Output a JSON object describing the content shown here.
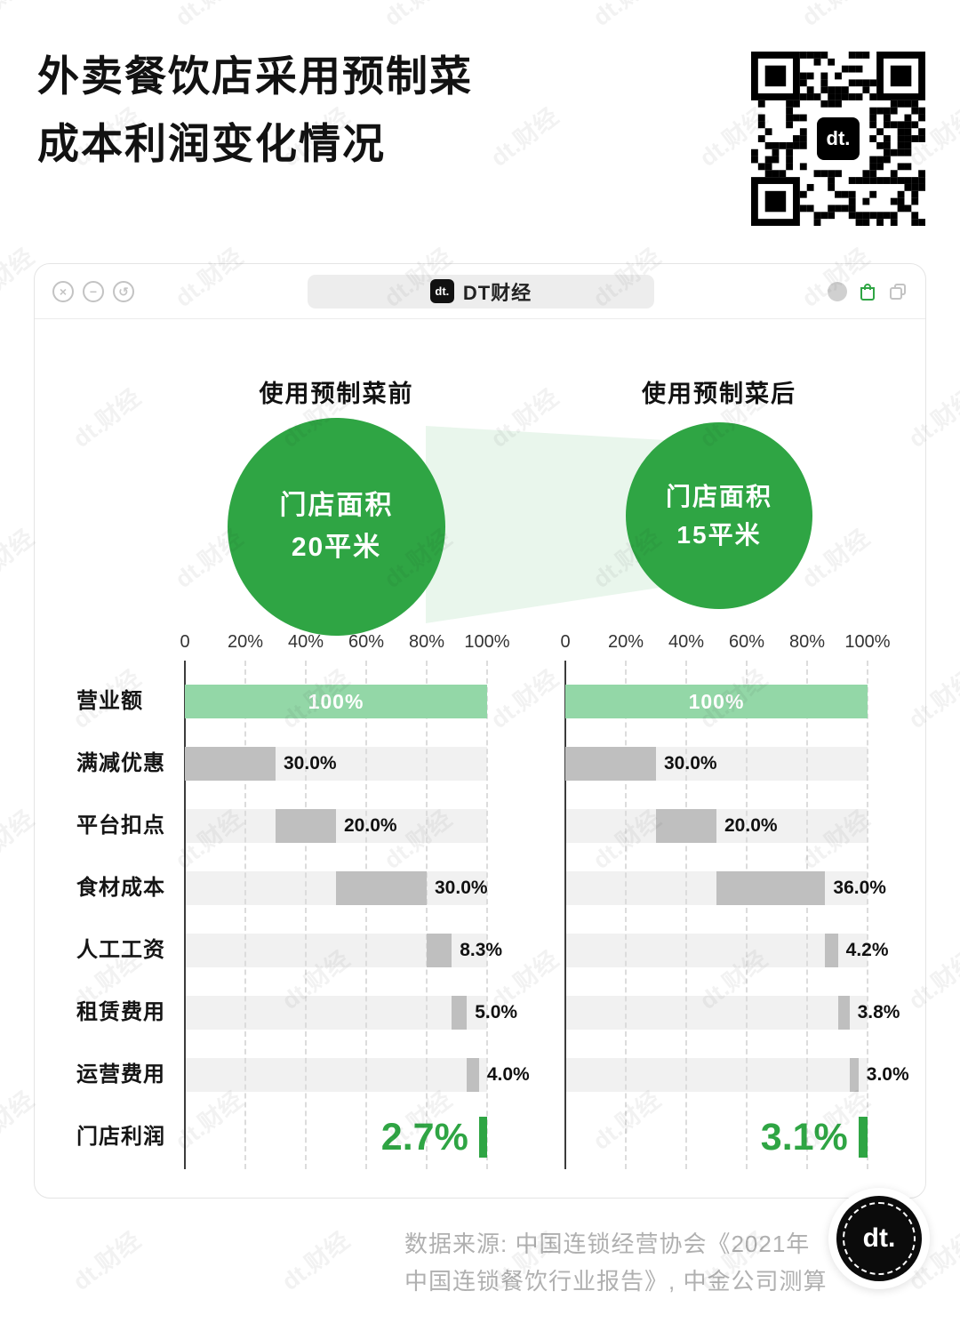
{
  "page": {
    "title_line1": "外卖餐饮店采用预制菜",
    "title_line2": "成本利润变化情况",
    "watermark": "dt.财经",
    "qr_logo": "dt.",
    "source_line1": "数据来源: 中国连锁经营协会《2021年",
    "source_line2": "中国连锁餐饮行业报告》, 中金公司测算",
    "badge_logo": "dt."
  },
  "card": {
    "pill_logo": "dt.",
    "pill_name": "DT财经",
    "window_controls": [
      "close",
      "minimize",
      "refresh"
    ]
  },
  "chart_data": {
    "type": "bar",
    "subtype": "horizontal-waterfall-pair",
    "title": "外卖餐饮店采用预制菜成本利润变化情况",
    "categories": [
      "营业额",
      "满减优惠",
      "平台扣点",
      "食材成本",
      "人工工资",
      "租赁费用",
      "运营费用",
      "门店利润"
    ],
    "axis_ticks": [
      "0",
      "20%",
      "40%",
      "60%",
      "80%",
      "100%"
    ],
    "xlim": [
      0,
      100
    ],
    "grid": "dashed-vertical",
    "series": [
      {
        "name": "使用预制菜前",
        "annotation": {
          "line1": "门店面积",
          "line2": "20平米"
        },
        "values": [
          100,
          30.0,
          20.0,
          30.0,
          8.3,
          5.0,
          4.0,
          2.7
        ],
        "labels": [
          "100%",
          "30.0%",
          "20.0%",
          "30.0%",
          "8.3%",
          "5.0%",
          "4.0%",
          "2.7%"
        ]
      },
      {
        "name": "使用预制菜后",
        "annotation": {
          "line1": "门店面积",
          "line2": "15平米"
        },
        "values": [
          100,
          30.0,
          20.0,
          36.0,
          4.2,
          3.8,
          3.0,
          3.1
        ],
        "labels": [
          "100%",
          "30.0%",
          "20.0%",
          "36.0%",
          "4.2%",
          "3.8%",
          "3.0%",
          "3.1%"
        ]
      }
    ],
    "colors": {
      "green": "#2FA544",
      "bar_green": "#93D7A7",
      "bar_gray": "#BFBFBF",
      "row_band": "#F1F1F1",
      "axis_line": "#3C3C3C",
      "grid_line": "#DCDCDC",
      "beam": "#E9F6EC"
    }
  }
}
